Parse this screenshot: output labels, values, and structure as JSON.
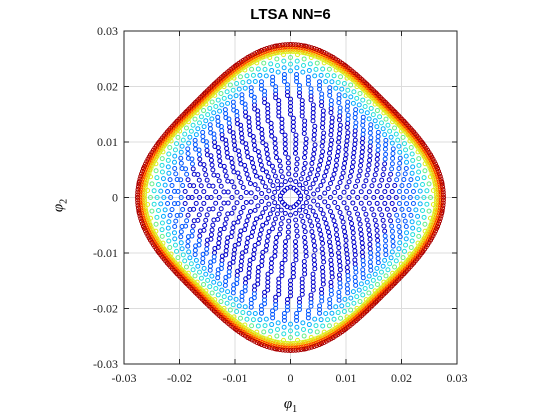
{
  "figure": {
    "title": "LTSA NN=6",
    "xlabel_symbol": "φ",
    "xlabel_sub": "1",
    "ylabel_symbol": "φ",
    "ylabel_sub": "2"
  },
  "chart_data": {
    "type": "scatter",
    "title": "LTSA NN=6",
    "xlabel": "φ1",
    "ylabel": "φ2",
    "xlim": [
      -0.03,
      0.03
    ],
    "ylim": [
      -0.03,
      0.03
    ],
    "xticks": [
      -0.03,
      -0.02,
      -0.01,
      0,
      0.01,
      0.02,
      0.03
    ],
    "yticks": [
      -0.03,
      -0.02,
      -0.01,
      0,
      0.01,
      0.02,
      0.03
    ],
    "xtick_labels": [
      "-0.03",
      "-0.02",
      "-0.01",
      "0",
      "0.01",
      "0.02",
      "0.03"
    ],
    "ytick_labels": [
      "-0.03",
      "-0.02",
      "-0.01",
      "0",
      "0.01",
      "0.02",
      "0.03"
    ],
    "grid": true,
    "marker": "open-circle",
    "colormap": [
      "#0000cc",
      "#0055ff",
      "#00aaff",
      "#22dddd",
      "#66ee88",
      "#ddee22",
      "#ffaa00",
      "#ff3300",
      "#aa0000"
    ],
    "point_cloud": {
      "shape": "rounded-square (superellipse)",
      "max_radius": 0.0242,
      "superellipse_exponent": 3.2,
      "rotation_deg": 45,
      "rings": 36,
      "spokes_per_quadrant": 16,
      "color_by": "radius"
    }
  }
}
